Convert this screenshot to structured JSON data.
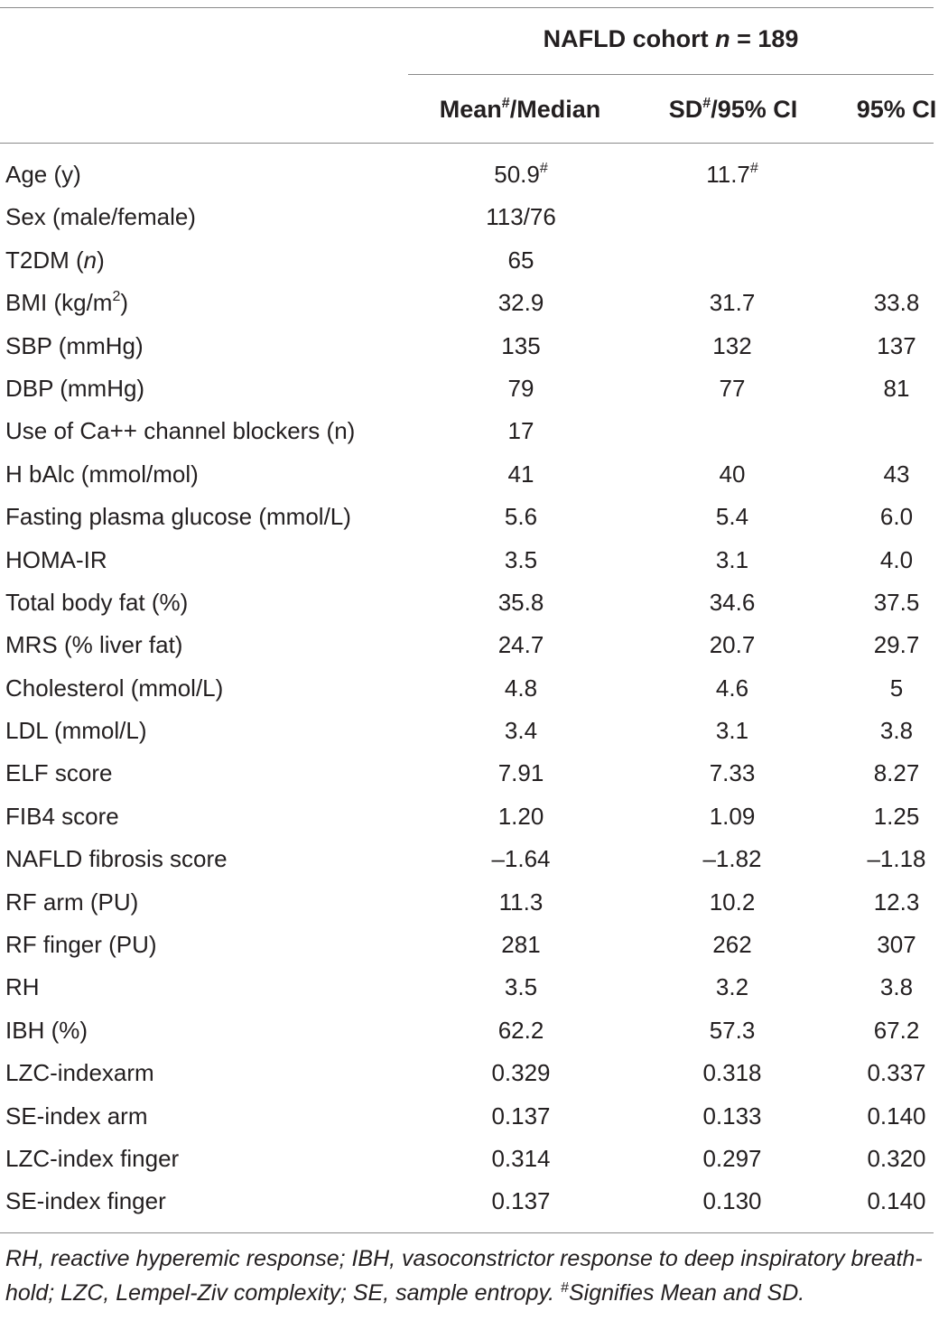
{
  "table": {
    "group_header": "NAFLD cohort n = 189",
    "group_header_parts": {
      "name": "NAFLD cohort ",
      "n_symbol": "n",
      "n_value": " = 189"
    },
    "columns": [
      {
        "main": "Mean",
        "sup": "#",
        "rest": "/Median"
      },
      {
        "main": "SD",
        "sup": "#",
        "rest": "/95% CI"
      },
      {
        "main": "95% CI",
        "sup": "",
        "rest": ""
      }
    ],
    "rows": [
      {
        "label": "Age (y)",
        "v1": "50.9",
        "v1_sup": "#",
        "v2": "11.7",
        "v2_sup": "#",
        "v3": ""
      },
      {
        "label": "Sex (male/female)",
        "v1": "113/76",
        "v2": "",
        "v3": ""
      },
      {
        "label": "T2DM (n)",
        "v1": "65",
        "v2": "",
        "v3": ""
      },
      {
        "label": "BMI (kg/m2)",
        "v1": "32.9",
        "v2": "31.7",
        "v3": "33.8"
      },
      {
        "label": "SBP (mmHg)",
        "v1": "135",
        "v2": "132",
        "v3": "137"
      },
      {
        "label": "DBP (mmHg)",
        "v1": "79",
        "v2": "77",
        "v3": "81"
      },
      {
        "label": "Use of Ca++ channel blockers (n)",
        "v1": "17",
        "v2": "",
        "v3": ""
      },
      {
        "label": "H bAlc (mmol/mol)",
        "v1": "41",
        "v2": "40",
        "v3": "43"
      },
      {
        "label": "Fasting plasma glucose (mmol/L)",
        "v1": "5.6",
        "v2": "5.4",
        "v3": "6.0"
      },
      {
        "label": "HOMA-IR",
        "v1": "3.5",
        "v2": "3.1",
        "v3": "4.0"
      },
      {
        "label": "Total body fat (%)",
        "v1": "35.8",
        "v2": "34.6",
        "v3": "37.5"
      },
      {
        "label": "MRS (% liver fat)",
        "v1": "24.7",
        "v2": "20.7",
        "v3": "29.7"
      },
      {
        "label": "Cholesterol (mmol/L)",
        "v1": "4.8",
        "v2": "4.6",
        "v3": "5"
      },
      {
        "label": "LDL (mmol/L)",
        "v1": "3.4",
        "v2": "3.1",
        "v3": "3.8"
      },
      {
        "label": "ELF score",
        "v1": "7.91",
        "v2": "7.33",
        "v3": "8.27"
      },
      {
        "label": "FIB4 score",
        "v1": "1.20",
        "v2": "1.09",
        "v3": "1.25"
      },
      {
        "label": "NAFLD fibrosis score",
        "v1": "–1.64",
        "v2": "–1.82",
        "v3": "–1.18"
      },
      {
        "label": "RF arm (PU)",
        "v1": "11.3",
        "v2": "10.2",
        "v3": "12.3"
      },
      {
        "label": "RF finger (PU)",
        "v1": "281",
        "v2": "262",
        "v3": "307"
      },
      {
        "label": "RH",
        "v1": "3.5",
        "v2": "3.2",
        "v3": "3.8"
      },
      {
        "label": "IBH (%)",
        "v1": "62.2",
        "v2": "57.3",
        "v3": "67.2"
      },
      {
        "label": "LZC-indexarm",
        "v1": "0.329",
        "v2": "0.318",
        "v3": "0.337"
      },
      {
        "label": "SE-index arm",
        "v1": "0.137",
        "v2": "0.133",
        "v3": "0.140"
      },
      {
        "label": "LZC-index finger",
        "v1": "0.314",
        "v2": "0.297",
        "v3": "0.320"
      },
      {
        "label": "SE-index finger",
        "v1": "0.137",
        "v2": "0.130",
        "v3": "0.140"
      }
    ]
  },
  "footnote": {
    "text": "RH, reactive hyperemic response; IBH, vasoconstrictor response to deep inspiratory breath-hold; LZC, Lempel-Ziv complexity; SE, sample entropy. ",
    "hash": "#",
    "tail": "Signifies Mean and SD."
  }
}
